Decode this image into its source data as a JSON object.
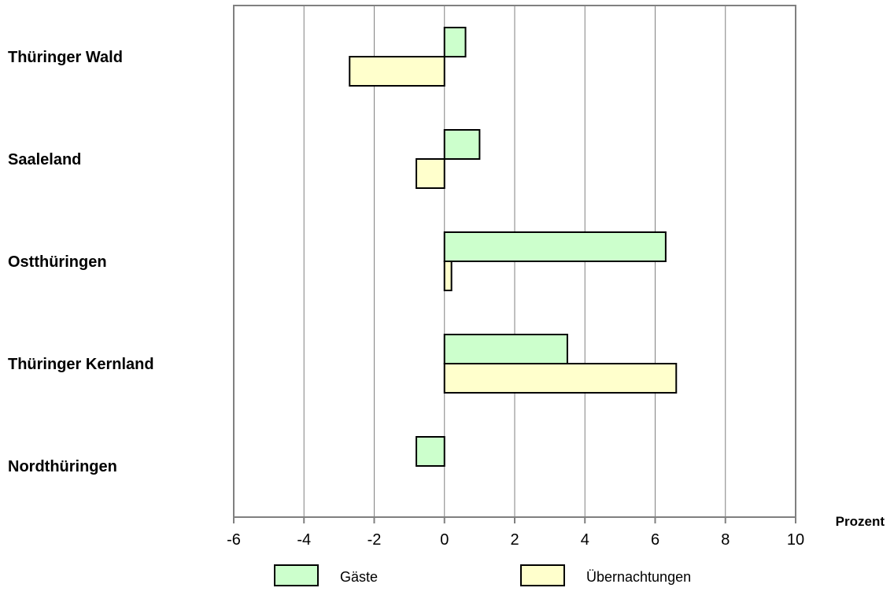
{
  "chart_data": {
    "type": "bar",
    "orientation": "horizontal",
    "categories": [
      "Thüringer Wald",
      "Saaleland",
      "Ostthüringen",
      "Thüringer Kernland",
      "Nordthüringen"
    ],
    "series": [
      {
        "name": "Gäste",
        "values": [
          0.6,
          1.0,
          6.3,
          3.5,
          -0.8
        ],
        "color": "#ccffcc"
      },
      {
        "name": "Übernachtungen",
        "values": [
          -2.7,
          -0.8,
          0.2,
          6.6,
          0.0
        ],
        "color": "#ffffcc"
      }
    ],
    "xlim": [
      -6,
      10
    ],
    "xticks": [
      -6,
      -4,
      -2,
      0,
      2,
      4,
      6,
      8,
      10
    ],
    "xtick_labels": [
      "-6",
      "-4",
      "-2",
      "0",
      "2",
      "4",
      "6",
      "8",
      "10"
    ],
    "xlabel": "Prozent",
    "grid": "vertical",
    "legend_position": "bottom"
  }
}
